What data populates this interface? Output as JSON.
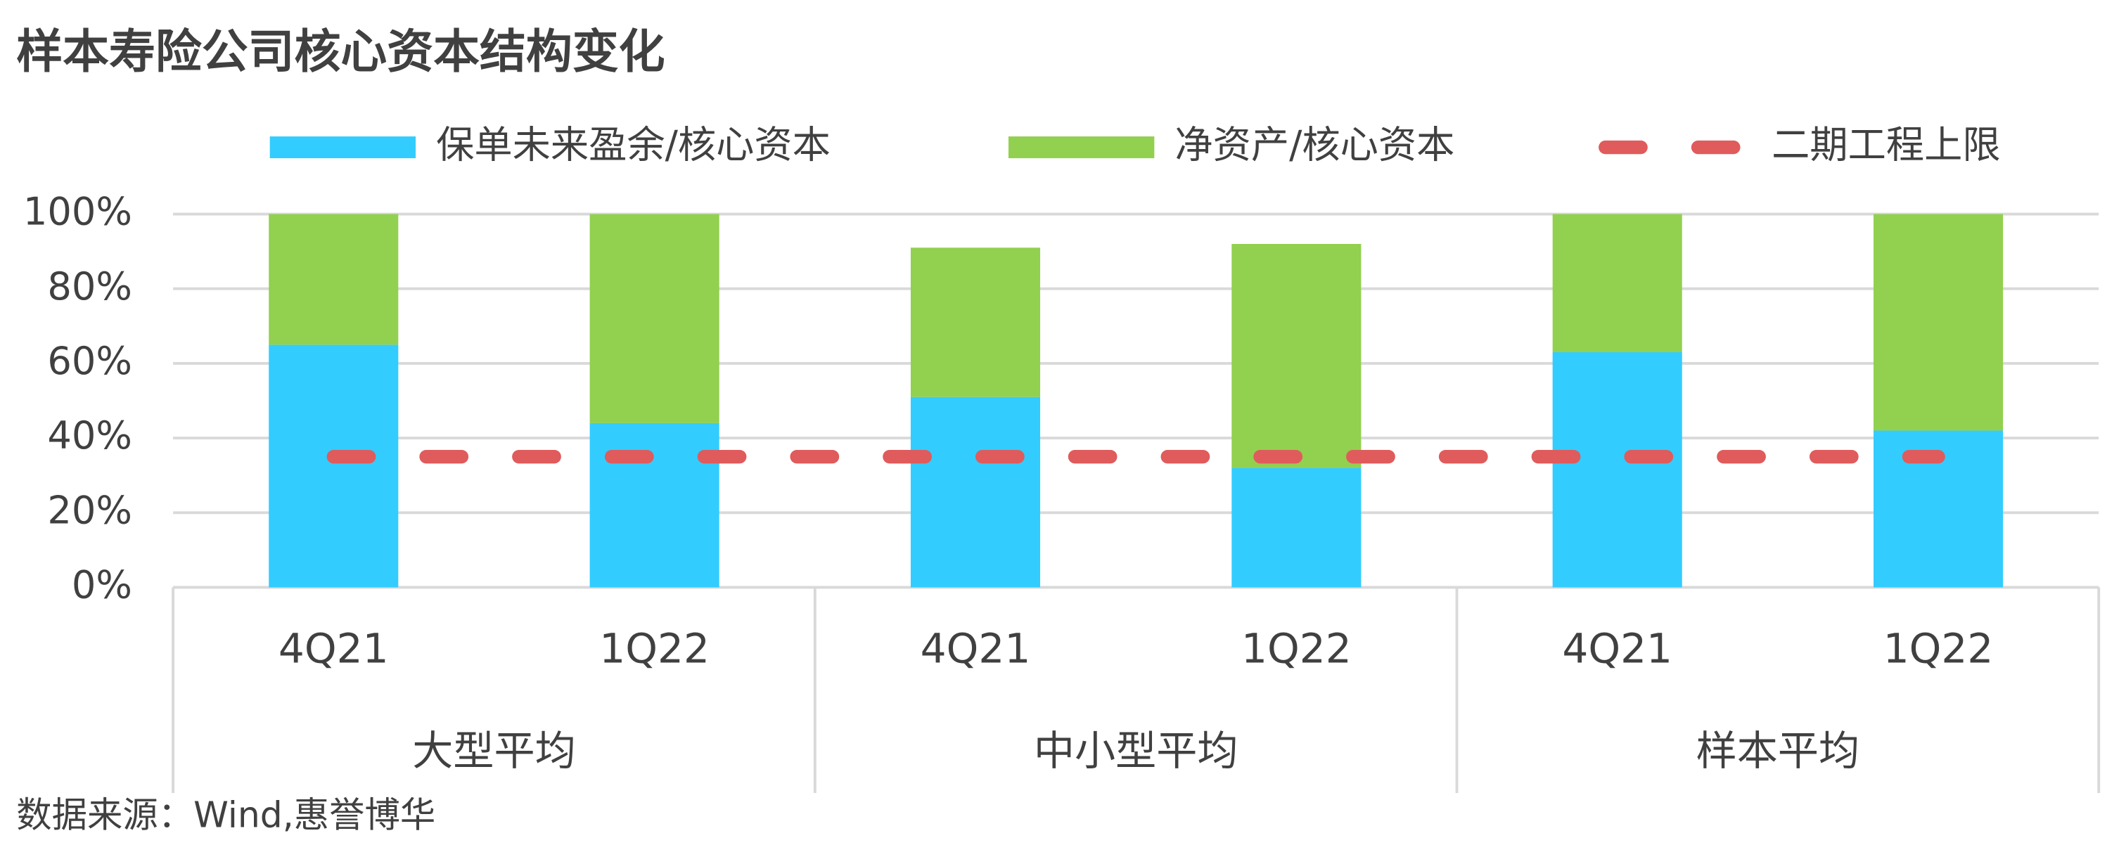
{
  "chart_data": {
    "type": "bar",
    "stacked": true,
    "title": "样本寿险公司核心资本结构变化",
    "categories": [
      "4Q21",
      "1Q22",
      "4Q21",
      "1Q22",
      "4Q21",
      "1Q22"
    ],
    "groups": [
      "大型平均",
      "中小型平均",
      "样本平均"
    ],
    "series": [
      {
        "name": "保单未来盈余/核心资本",
        "color": "#33ccff",
        "values": [
          65,
          44,
          51,
          32,
          63,
          42
        ]
      },
      {
        "name": "净资产/核心资本",
        "color": "#92d050",
        "values": [
          35,
          56,
          40,
          60,
          37,
          58
        ]
      },
      {
        "name": "二期工程上限",
        "type": "line",
        "dashed": true,
        "color": "#e05b5b",
        "values": [
          35,
          35,
          35,
          35,
          35,
          35
        ]
      }
    ],
    "ylim": [
      0,
      100
    ],
    "yticks": [
      {
        "value": 0,
        "label": "0%"
      },
      {
        "value": 20,
        "label": "20%"
      },
      {
        "value": 40,
        "label": "40%"
      },
      {
        "value": 60,
        "label": "60%"
      },
      {
        "value": 80,
        "label": "80%"
      },
      {
        "value": 100,
        "label": "100%"
      }
    ],
    "grid": true,
    "legend": "top",
    "source": "数据来源：Wind,惠誉博华"
  }
}
